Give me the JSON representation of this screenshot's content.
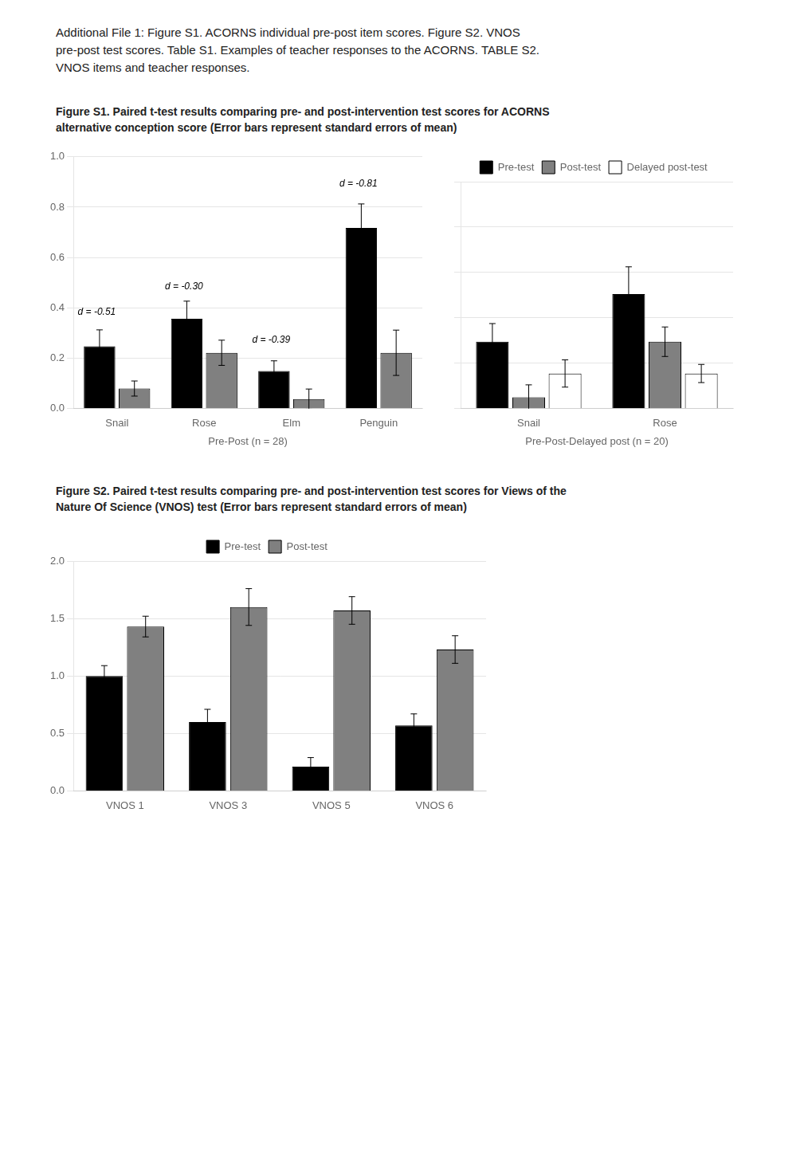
{
  "header": [
    "Additional File 1: Figure S1. ACORNS individual pre-post item scores. Figure S2. VNOS",
    "pre-post test scores. Table S1. Examples of teacher responses to the ACORNS. TABLE S2.",
    "VNOS items and teacher responses."
  ],
  "chart_data": [
    {
      "type": "bar",
      "title": "Figure S1. Paired t-test results comparing pre- and post-intervention test scores for ACORNS\nalternative conception score (Error bars represent standard errors of mean)",
      "x_label": "Pre-Post (n = 28)",
      "categories": [
        "Snail",
        "Rose",
        "Elm",
        "Penguin"
      ],
      "series": [
        {
          "name": "Pre-test",
          "color": "#000000",
          "values": [
            0.248,
            0.357,
            0.15,
            0.718
          ],
          "errors": [
            0.065,
            0.07,
            0.04,
            0.095
          ]
        },
        {
          "name": "Post-test",
          "color": "#808080",
          "values": [
            0.08,
            0.222,
            0.038,
            0.222
          ],
          "errors": [
            0.03,
            0.05,
            0.04,
            0.09
          ]
        }
      ],
      "annotations": [
        {
          "text": "d = -0.51",
          "x": "Snail",
          "y": 0.365
        },
        {
          "text": "d = -0.30",
          "x": "Rose",
          "y": 0.465
        },
        {
          "text": "d = -0.39",
          "x": "Elm",
          "y": 0.255
        },
        {
          "text": "d = -0.81",
          "x": "Penguin",
          "y": 0.875
        }
      ],
      "ylim": [
        0.0,
        1.0
      ],
      "yticks": [
        {
          "value": 0,
          "label": "0.0"
        },
        0.2,
        0.4,
        0.6,
        0.8,
        {
          "value": 1,
          "label": "1.0"
        }
      ],
      "grid": true
    },
    {
      "type": "bar",
      "x_label": "Pre-Post-Delayed post (n = 20)",
      "categories": [
        "Snail",
        "Rose"
      ],
      "series": [
        {
          "name": "Pre-test",
          "color": "#000000",
          "values": [
            0.295,
            0.505
          ],
          "errors": [
            0.08,
            0.12
          ]
        },
        {
          "name": "Post-test",
          "color": "#808080",
          "values": [
            0.05,
            0.295
          ],
          "errors": [
            0.055,
            0.065
          ]
        },
        {
          "name": "Delayed post-test",
          "color": "#ffffff",
          "values": [
            0.155,
            0.155
          ],
          "errors": [
            0.06,
            0.04
          ]
        }
      ],
      "ylim": [
        0.0,
        1.0
      ],
      "yticks": [
        {
          "value": 0,
          "label": "0.0"
        },
        0.2,
        0.4,
        0.6,
        0.8,
        {
          "value": 1,
          "label": "1.0"
        }
      ],
      "grid": true,
      "legend": "top",
      "tick_labels": "x"
    },
    {
      "type": "bar",
      "title": "Figure S2. Paired t-test results comparing pre- and post-intervention test scores for Views of the\nNature Of Science (VNOS) test (Error bars represent standard errors of mean)",
      "categories": [
        "VNOS 1",
        "VNOS 3",
        "VNOS 5",
        "VNOS 6"
      ],
      "series": [
        {
          "name": "Pre-test",
          "color": "#000000",
          "values": [
            1.0,
            0.6,
            0.21,
            0.57
          ],
          "errors": [
            0.09,
            0.11,
            0.08,
            0.1
          ]
        },
        {
          "name": "Post-test",
          "color": "#808080",
          "values": [
            1.43,
            1.6,
            1.57,
            1.23
          ],
          "errors": [
            0.09,
            0.16,
            0.12,
            0.12
          ]
        }
      ],
      "ylim": [
        0.0,
        2.0
      ],
      "yticks": [
        {
          "value": 0,
          "label": "0.0"
        },
        0.5,
        {
          "value": 1,
          "label": "1.0"
        },
        1.5,
        {
          "value": 2,
          "label": "2.0"
        }
      ],
      "grid": true,
      "legend": "top"
    }
  ]
}
